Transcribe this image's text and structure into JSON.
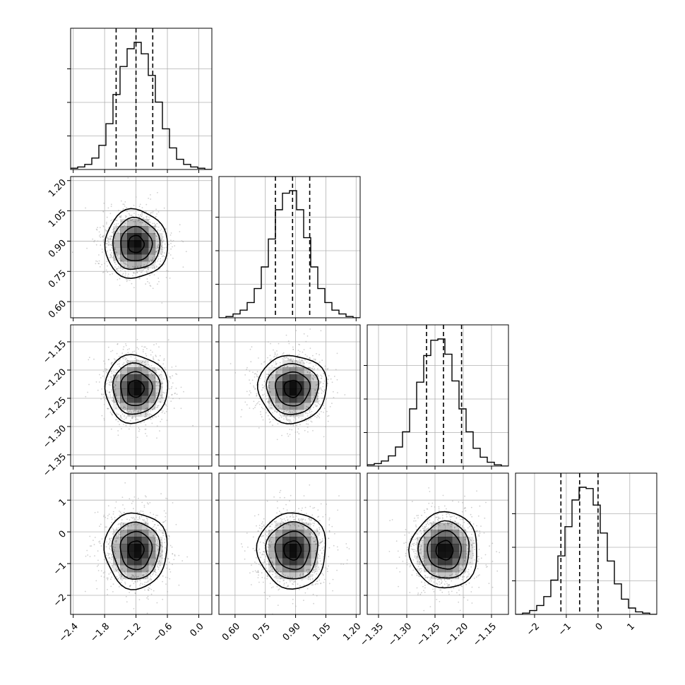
{
  "chart_data": {
    "type": "corner",
    "title": "",
    "parameters": [
      {
        "mean": -1.2,
        "sd": 0.3,
        "range": [
          -2.45,
          0.25
        ],
        "ticks": [
          -2.4,
          -1.8,
          -1.2,
          -0.6,
          0.0
        ],
        "tick_labels": [
          "−2.4",
          "−1.8",
          "−1.2",
          "−0.6",
          "0.0"
        ],
        "quantiles": [
          -1.58,
          -1.2,
          -0.88
        ],
        "hist": [
          0.01,
          0.02,
          0.04,
          0.09,
          0.19,
          0.36,
          0.59,
          0.81,
          0.95,
          1.0,
          0.91,
          0.74,
          0.53,
          0.32,
          0.17,
          0.08,
          0.04,
          0.02,
          0.01,
          0.0
        ]
      },
      {
        "mean": 0.885,
        "sd": 0.085,
        "range": [
          0.52,
          1.22
        ],
        "ticks": [
          0.6,
          0.75,
          0.9,
          1.05,
          1.2
        ],
        "tick_labels": [
          "0.60",
          "0.75",
          "0.90",
          "1.05",
          "1.20"
        ],
        "quantiles": [
          0.8,
          0.885,
          0.97
        ],
        "hist": [
          0.0,
          0.01,
          0.03,
          0.06,
          0.12,
          0.23,
          0.4,
          0.62,
          0.85,
          0.98,
          1.0,
          0.85,
          0.63,
          0.4,
          0.23,
          0.12,
          0.06,
          0.03,
          0.01,
          0.0
        ]
      },
      {
        "mean": -1.233,
        "sd": 0.03,
        "range": [
          -1.37,
          -1.12
        ],
        "ticks": [
          -1.35,
          -1.3,
          -1.25,
          -1.2,
          -1.15
        ],
        "tick_labels": [
          "−1.35",
          "−1.30",
          "−1.25",
          "−1.20",
          "−1.15"
        ],
        "quantiles": [
          -1.265,
          -1.235,
          -1.203
        ],
        "hist": [
          0.01,
          0.02,
          0.04,
          0.08,
          0.15,
          0.27,
          0.45,
          0.66,
          0.87,
          0.99,
          1.0,
          0.88,
          0.67,
          0.45,
          0.27,
          0.14,
          0.07,
          0.03,
          0.01,
          0.0
        ]
      },
      {
        "mean": -0.58,
        "sd": 0.6,
        "range": [
          -2.6,
          1.85
        ],
        "ticks": [
          -2,
          -1,
          0,
          1
        ],
        "tick_labels": [
          "−2",
          "−1",
          "0",
          "1"
        ],
        "quantiles": [
          -1.17,
          -0.58,
          0.0
        ],
        "hist": [
          0.0,
          0.01,
          0.03,
          0.07,
          0.14,
          0.27,
          0.46,
          0.69,
          0.9,
          1.0,
          0.99,
          0.86,
          0.64,
          0.42,
          0.24,
          0.12,
          0.05,
          0.02,
          0.01,
          0.0
        ]
      }
    ],
    "x_tick_rows": [
      0,
      1,
      2,
      3
    ],
    "y_tick_rows": [
      1,
      2,
      3
    ],
    "grid": true,
    "histogram_quantile_lines": "dashed",
    "contour_levels_sigma": [
      0.5,
      1.0,
      1.5,
      2.0
    ],
    "colors": {
      "points": "#a8a8a8",
      "density": "#000000",
      "lines": "#000000",
      "grid": "#b0b0b0"
    }
  }
}
